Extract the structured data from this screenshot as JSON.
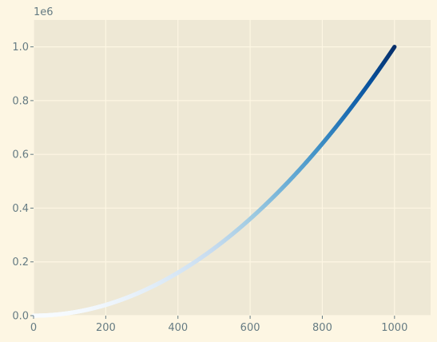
{
  "chart_data": {
    "type": "scatter",
    "title": "",
    "xlabel": "",
    "ylabel": "",
    "series": [
      {
        "x_start": 0,
        "x_end": 1000,
        "x_step": 1,
        "y_formula": "x^2",
        "colormap": "Blues",
        "sample_points": [
          {
            "x": 0,
            "y": 0
          },
          {
            "x": 200,
            "y": 40000
          },
          {
            "x": 400,
            "y": 160000
          },
          {
            "x": 600,
            "y": 360000
          },
          {
            "x": 800,
            "y": 640000
          },
          {
            "x": 1000,
            "y": 1000000
          }
        ]
      }
    ],
    "xlim": [
      0,
      1100
    ],
    "ylim": [
      0,
      1100000
    ],
    "xticks": [
      "0",
      "200",
      "400",
      "600",
      "800",
      "1000"
    ],
    "yticks": [
      "0.0",
      "0.2",
      "0.4",
      "0.6",
      "0.8",
      "1.0"
    ],
    "y_offset_label": "1e6",
    "grid": true,
    "legend": "none",
    "colors": {
      "figure_bg": "#fdf6e3",
      "axes_bg": "#eee8d5",
      "grid": "#fdf6e3",
      "tick_text": "#657b83"
    }
  }
}
